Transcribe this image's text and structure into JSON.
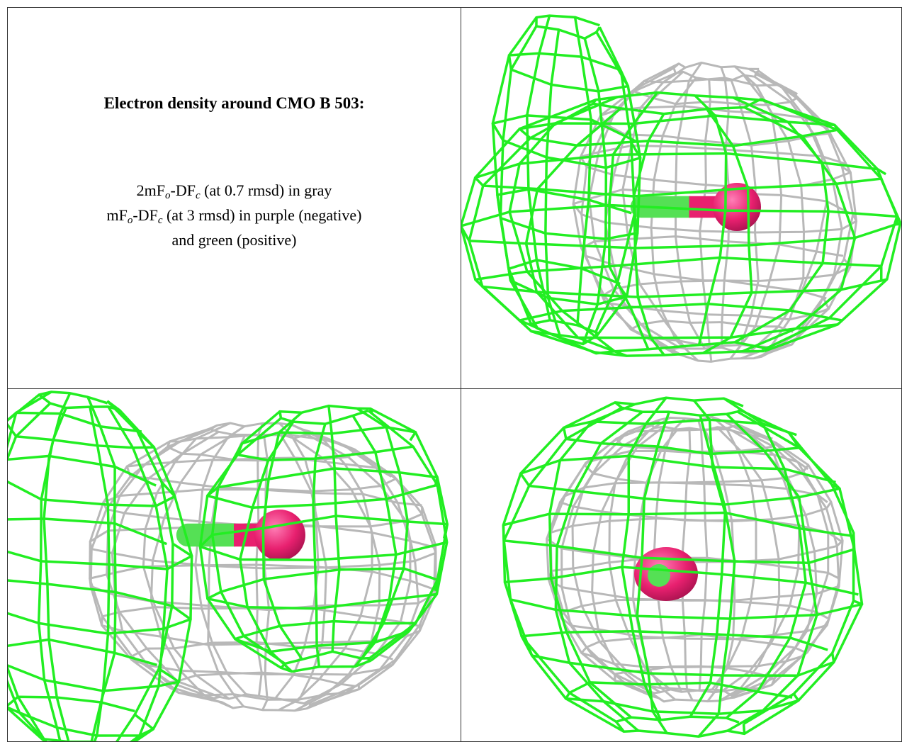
{
  "caption": {
    "title": "Electron density around CMO B 503:",
    "lines": [
      [
        "2mF",
        "o",
        "-DF",
        "c",
        " (at 0.7 rmsd) in gray"
      ],
      [
        "mF",
        "o",
        "-DF",
        "c",
        " (at 3 rmsd) in purple (negative)"
      ],
      [
        "and green (positive)"
      ]
    ]
  }
}
